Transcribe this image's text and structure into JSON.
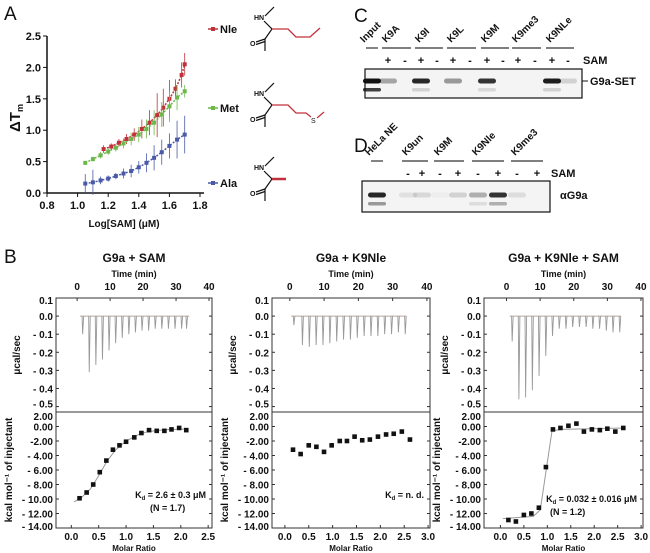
{
  "panel_labels": {
    "A": "A",
    "B": "B",
    "C": "C",
    "D": "D"
  },
  "chart_data": [
    {
      "id": "A",
      "type": "scatter",
      "title": "",
      "xlabel": "Log[SAM] (μM)",
      "ylabel": "ΔT",
      "ylabel_sub": "m",
      "xlim": [
        0.8,
        1.8
      ],
      "ylim": [
        0,
        2.5
      ],
      "xticks": [
        "0.8",
        "1.0",
        "1.2",
        "1.4",
        "1.6",
        "1.8"
      ],
      "yticks": [
        "0.0",
        "0.5",
        "1.0",
        "1.5",
        "2.0",
        "2.5"
      ],
      "legend_placement": "right",
      "series": [
        {
          "name": "Nle",
          "color": "#c0313a",
          "points": [
            [
              1.17,
              0.7,
              0.06
            ],
            [
              1.22,
              0.74,
              0.05
            ],
            [
              1.27,
              0.8,
              0.06
            ],
            [
              1.32,
              0.86,
              0.08
            ],
            [
              1.37,
              0.93,
              0.1
            ],
            [
              1.42,
              1.02,
              0.15
            ],
            [
              1.47,
              1.12,
              0.2
            ],
            [
              1.52,
              1.24,
              0.35
            ],
            [
              1.56,
              1.36,
              0.3
            ],
            [
              1.6,
              1.5,
              0.3
            ],
            [
              1.64,
              1.66,
              0.15
            ],
            [
              1.68,
              1.88,
              0.2
            ],
            [
              1.7,
              2.05,
              0.18
            ]
          ]
        },
        {
          "name": "Met",
          "color": "#6cb84a",
          "points": [
            [
              1.05,
              0.48,
              0.03
            ],
            [
              1.1,
              0.54,
              0.04
            ],
            [
              1.15,
              0.6,
              0.05
            ],
            [
              1.2,
              0.66,
              0.05
            ],
            [
              1.25,
              0.72,
              0.06
            ],
            [
              1.3,
              0.79,
              0.08
            ],
            [
              1.35,
              0.86,
              0.1
            ],
            [
              1.4,
              0.93,
              0.12
            ],
            [
              1.45,
              1.02,
              0.15
            ],
            [
              1.5,
              1.12,
              0.2
            ],
            [
              1.55,
              1.25,
              0.2
            ],
            [
              1.6,
              1.38,
              0.25
            ],
            [
              1.65,
              1.52,
              0.2
            ],
            [
              1.7,
              1.62,
              0.1
            ]
          ]
        },
        {
          "name": "Ala",
          "color": "#4a5aa8",
          "points": [
            [
              1.05,
              0.15,
              0.15
            ],
            [
              1.1,
              0.17,
              0.2
            ],
            [
              1.15,
              0.2,
              0.06
            ],
            [
              1.2,
              0.23,
              0.05
            ],
            [
              1.25,
              0.27,
              0.05
            ],
            [
              1.3,
              0.31,
              0.08
            ],
            [
              1.35,
              0.35,
              0.1
            ],
            [
              1.4,
              0.41,
              0.1
            ],
            [
              1.45,
              0.48,
              0.15
            ],
            [
              1.5,
              0.56,
              0.2
            ],
            [
              1.55,
              0.65,
              0.2
            ],
            [
              1.6,
              0.75,
              0.2
            ],
            [
              1.65,
              0.85,
              0.3
            ],
            [
              1.7,
              0.93,
              0.3
            ]
          ]
        }
      ],
      "structures": {
        "amine": "HN",
        "carbonyl": "O",
        "sulfur": "S"
      }
    },
    {
      "id": "B1",
      "type": "line",
      "title": "G9a + SAM",
      "time_label": "Time (min)",
      "time_xlim": [
        -6.4,
        40.9
      ],
      "time_ticks": [
        0,
        10,
        20,
        30,
        40
      ],
      "raw_ylabel": "μcal/sec",
      "raw_ylim": [
        -0.53,
        0.1
      ],
      "raw_yticks": [
        [
          0.1,
          "0.1"
        ],
        [
          0,
          "0.0"
        ],
        [
          -0.1,
          "- 0.1"
        ],
        [
          -0.2,
          "- 0.2"
        ],
        [
          -0.3,
          "- 0.3"
        ],
        [
          -0.4,
          "- 0.4"
        ],
        [
          -0.5,
          "- 0.5"
        ]
      ],
      "injections": [
        [
          1.5,
          -0.1
        ],
        [
          3.5,
          -0.31
        ],
        [
          5.5,
          -0.27
        ],
        [
          7.5,
          -0.24
        ],
        [
          9.5,
          -0.19
        ],
        [
          11.5,
          -0.15
        ],
        [
          13.5,
          -0.12
        ],
        [
          15.5,
          -0.1
        ],
        [
          17.5,
          -0.09
        ],
        [
          19.5,
          -0.08
        ],
        [
          21.5,
          -0.08
        ],
        [
          23.5,
          -0.07
        ],
        [
          25.5,
          -0.07
        ],
        [
          27.5,
          -0.07
        ],
        [
          29.5,
          -0.07
        ],
        [
          31.5,
          -0.07
        ],
        [
          33.0,
          -0.07
        ]
      ],
      "ylabel": "kcal mol⁻¹ of injectant",
      "ylim": [
        -14,
        2
      ],
      "yticks": [
        [
          2,
          "2.00"
        ],
        [
          0,
          "0.00"
        ],
        [
          -2,
          "-2.00"
        ],
        [
          -4,
          "- 4.00"
        ],
        [
          -6,
          "- 6.00"
        ],
        [
          -8,
          "- 8.00"
        ],
        [
          -10,
          "- 10.00"
        ],
        [
          -12,
          "- 12.00"
        ],
        [
          -14,
          "- 14.00"
        ]
      ],
      "xlabel": "Molar Ratio",
      "xlim": [
        -0.28,
        2.57
      ],
      "xticks": [
        [
          0,
          "0.0"
        ],
        [
          0.5,
          "0.5"
        ],
        [
          1,
          "1.0"
        ],
        [
          1.5,
          "1.5"
        ],
        [
          2,
          "2.0"
        ],
        [
          2.5,
          "2.5"
        ]
      ],
      "points": [
        [
          0.15,
          -9.9
        ],
        [
          0.28,
          -9.1
        ],
        [
          0.4,
          -8.0
        ],
        [
          0.52,
          -6.3
        ],
        [
          0.64,
          -4.7
        ],
        [
          0.76,
          -3.2
        ],
        [
          0.88,
          -2.6
        ],
        [
          1.0,
          -2.1
        ],
        [
          1.15,
          -1.5
        ],
        [
          1.28,
          -0.9
        ],
        [
          1.42,
          -0.5
        ],
        [
          1.56,
          -0.6
        ],
        [
          1.7,
          -0.6
        ],
        [
          1.83,
          -0.4
        ],
        [
          1.97,
          -0.2
        ],
        [
          2.1,
          -0.5
        ]
      ],
      "fit": [
        [
          0.05,
          -10.4
        ],
        [
          0.2,
          -9.7
        ],
        [
          0.35,
          -8.6
        ],
        [
          0.5,
          -6.8
        ],
        [
          0.65,
          -4.8
        ],
        [
          0.8,
          -3.3
        ],
        [
          1.0,
          -2.0
        ],
        [
          1.2,
          -1.2
        ],
        [
          1.4,
          -0.7
        ],
        [
          1.7,
          -0.45
        ],
        [
          2.1,
          -0.35
        ]
      ],
      "annotation": [
        "K",
        "d",
        " = 2.6 ± 0.3 μM",
        "(N = 1.7)"
      ]
    },
    {
      "id": "B2",
      "type": "line",
      "title": "G9a + K9Nle",
      "time_label": "Time (min)",
      "time_xlim": [
        -5.2,
        40.9
      ],
      "time_ticks": [
        0,
        10,
        20,
        30,
        40
      ],
      "raw_ylabel": "μcal/sec",
      "raw_ylim": [
        -0.53,
        0.1
      ],
      "raw_yticks": [
        [
          0.1,
          "0.1"
        ],
        [
          0,
          "0.0"
        ],
        [
          -0.1,
          "- 0.1"
        ],
        [
          -0.2,
          "- 0.2"
        ],
        [
          -0.3,
          "- 0.3"
        ],
        [
          -0.4,
          "- 0.4"
        ],
        [
          -0.5,
          "- 0.5"
        ]
      ],
      "injections": [
        [
          1.0,
          -0.05
        ],
        [
          3.5,
          -0.16
        ],
        [
          5.5,
          -0.17
        ],
        [
          7.5,
          -0.16
        ],
        [
          9.5,
          -0.16
        ],
        [
          11.5,
          -0.15
        ],
        [
          13.5,
          -0.14
        ],
        [
          15.5,
          -0.13
        ],
        [
          17.5,
          -0.13
        ],
        [
          19.5,
          -0.12
        ],
        [
          21.5,
          -0.11
        ],
        [
          23.5,
          -0.11
        ],
        [
          25.5,
          -0.11
        ],
        [
          27.5,
          -0.1
        ],
        [
          29.5,
          -0.1
        ],
        [
          31.5,
          -0.09
        ],
        [
          33.5,
          -0.1
        ]
      ],
      "ylabel": "kcal mol⁻¹ of injectant",
      "ylim": [
        -14,
        2
      ],
      "yticks": [
        [
          2,
          "2.00"
        ],
        [
          0,
          "0.00"
        ],
        [
          -2,
          "-2.00"
        ],
        [
          -4,
          "- 4.00"
        ],
        [
          -6,
          "- 6.00"
        ],
        [
          -8,
          "- 8.00"
        ],
        [
          -10,
          "- 10.00"
        ],
        [
          -12,
          "- 12.00"
        ],
        [
          -14,
          "- 14.00"
        ]
      ],
      "xlabel": "Molar Ratio",
      "xlim": [
        -0.27,
        3.04
      ],
      "xticks": [
        [
          0,
          "0.0"
        ],
        [
          0.5,
          "0.5"
        ],
        [
          1,
          "1.0"
        ],
        [
          1.5,
          "1.5"
        ],
        [
          2,
          "2.0"
        ],
        [
          2.5,
          "2.5"
        ],
        [
          3,
          "3.0"
        ]
      ],
      "points": [
        [
          0.17,
          -3.2
        ],
        [
          0.33,
          -3.8
        ],
        [
          0.5,
          -2.6
        ],
        [
          0.66,
          -2.8
        ],
        [
          0.82,
          -3.5
        ],
        [
          0.98,
          -2.6
        ],
        [
          1.15,
          -2.0
        ],
        [
          1.3,
          -2.0
        ],
        [
          1.46,
          -1.4
        ],
        [
          1.62,
          -1.9
        ],
        [
          1.78,
          -1.8
        ],
        [
          1.95,
          -1.4
        ],
        [
          2.12,
          -1.1
        ],
        [
          2.28,
          -1.0
        ],
        [
          2.45,
          -0.7
        ],
        [
          2.62,
          -1.8
        ]
      ],
      "fit": [],
      "annotation": [
        "K",
        "d",
        " = n. d.",
        ""
      ]
    },
    {
      "id": "B3",
      "type": "line",
      "title": "G9a + K9Nle + SAM",
      "time_label": "Time (min)",
      "time_xlim": [
        -6.7,
        40.6
      ],
      "time_ticks": [
        0,
        10,
        20,
        30,
        40
      ],
      "raw_ylabel": "μcal/sec",
      "raw_ylim": [
        -0.53,
        0.1
      ],
      "raw_yticks": [
        [
          0.1,
          "0.1"
        ],
        [
          0,
          "0.0"
        ],
        [
          -0.1,
          "- 0.1"
        ],
        [
          -0.2,
          "- 0.2"
        ],
        [
          -0.3,
          "- 0.3"
        ],
        [
          -0.4,
          "- 0.4"
        ],
        [
          -0.5,
          "- 0.5"
        ]
      ],
      "injections": [
        [
          1.5,
          -0.14
        ],
        [
          3.5,
          -0.46
        ],
        [
          5.5,
          -0.45
        ],
        [
          7.5,
          -0.41
        ],
        [
          9.5,
          -0.33
        ],
        [
          11.5,
          -0.22
        ],
        [
          13.5,
          -0.11
        ],
        [
          15.5,
          -0.07
        ],
        [
          17.5,
          -0.07
        ],
        [
          19.5,
          -0.06
        ],
        [
          21.5,
          -0.06
        ],
        [
          23.5,
          -0.06
        ],
        [
          25.5,
          -0.07
        ],
        [
          27.5,
          -0.07
        ],
        [
          29.5,
          -0.08
        ],
        [
          31.5,
          -0.09
        ],
        [
          33.5,
          -0.09
        ]
      ],
      "ylabel": "kcal mol⁻¹ of injectant",
      "ylim": [
        -14,
        2
      ],
      "yticks": [
        [
          2,
          "2.00"
        ],
        [
          0,
          "0.00"
        ],
        [
          -2,
          "-2.00"
        ],
        [
          -4,
          "- 4.00"
        ],
        [
          -6,
          "- 6.00"
        ],
        [
          -8,
          "- 8.00"
        ],
        [
          -10,
          "- 10.00"
        ],
        [
          -12,
          "- 12.00"
        ],
        [
          -14,
          "- 14.00"
        ]
      ],
      "xlabel": "Molar Ratio",
      "xlim": [
        -0.35,
        3.04
      ],
      "xticks": [
        [
          0,
          "0.0"
        ],
        [
          0.5,
          "0.5"
        ],
        [
          1,
          "1.0"
        ],
        [
          1.5,
          "1.5"
        ],
        [
          2,
          "2.0"
        ],
        [
          2.5,
          "2.5"
        ],
        [
          3,
          "3.0"
        ]
      ],
      "points": [
        [
          0.17,
          -12.9
        ],
        [
          0.33,
          -13.1
        ],
        [
          0.5,
          -12.2
        ],
        [
          0.66,
          -12.0
        ],
        [
          0.82,
          -11.2
        ],
        [
          0.97,
          -5.6
        ],
        [
          1.12,
          -0.4
        ],
        [
          1.28,
          -0.2
        ],
        [
          1.45,
          0.1
        ],
        [
          1.62,
          0.4
        ],
        [
          1.78,
          -0.7
        ],
        [
          1.95,
          -0.4
        ],
        [
          2.12,
          -0.5
        ],
        [
          2.28,
          -0.3
        ],
        [
          2.45,
          -0.7
        ],
        [
          2.62,
          -0.2
        ]
      ],
      "fit": [
        [
          0.05,
          -12.7
        ],
        [
          0.7,
          -12.4
        ],
        [
          0.85,
          -11.5
        ],
        [
          1.1,
          -0.6
        ],
        [
          1.3,
          -0.4
        ],
        [
          2.65,
          -0.2
        ]
      ],
      "annotation": [
        "K",
        "d",
        " = 0.032 ± 0.016 μM",
        "(N = 1.2)"
      ]
    }
  ],
  "gels": {
    "C": {
      "sam_label": "SAM",
      "blot_label": "G9a-SET",
      "groups": [
        "Input",
        "K9A",
        "K9I",
        "K9L",
        "K9M",
        "K9me3",
        "K9NLe"
      ],
      "lanes": [
        {
          "sign": "",
          "band": 1.0,
          "lower": 0.8
        },
        {
          "sign": "+",
          "band": 0.35,
          "lower": 0
        },
        {
          "sign": "-",
          "band": 0,
          "lower": 0
        },
        {
          "sign": "+",
          "band": 0.9,
          "lower": 0.15
        },
        {
          "sign": "-",
          "band": 0,
          "lower": 0
        },
        {
          "sign": "+",
          "band": 0.4,
          "lower": 0
        },
        {
          "sign": "-",
          "band": 0,
          "lower": 0
        },
        {
          "sign": "+",
          "band": 0.85,
          "lower": 0.12
        },
        {
          "sign": "-",
          "band": 0,
          "lower": 0
        },
        {
          "sign": "+",
          "band": 0,
          "lower": 0
        },
        {
          "sign": "-",
          "band": 0,
          "lower": 0
        },
        {
          "sign": "+",
          "band": 0.95,
          "lower": 0.15
        },
        {
          "sign": "-",
          "band": 0.15,
          "lower": 0
        }
      ]
    },
    "D": {
      "sam_label": "SAM",
      "blot_label": "αG9a",
      "groups": [
        "HeLa NE",
        "K9un",
        "K9M",
        "K9Nle",
        "K9me3"
      ],
      "lanes": [
        {
          "sign": "",
          "band": 0.9,
          "lower": 0.4
        },
        {
          "sign": "-",
          "band": 0.08,
          "lower": 0
        },
        {
          "sign": "+",
          "band": 0.12,
          "lower": 0
        },
        {
          "sign": "-",
          "band": 0.03,
          "lower": 0
        },
        {
          "sign": "+",
          "band": 0.15,
          "lower": 0
        },
        {
          "sign": "-",
          "band": 0.3,
          "lower": 0.1
        },
        {
          "sign": "+",
          "band": 0.85,
          "lower": 0.3
        },
        {
          "sign": "-",
          "band": 0.1,
          "lower": 0
        },
        {
          "sign": "+",
          "band": 0,
          "lower": 0
        }
      ]
    }
  }
}
